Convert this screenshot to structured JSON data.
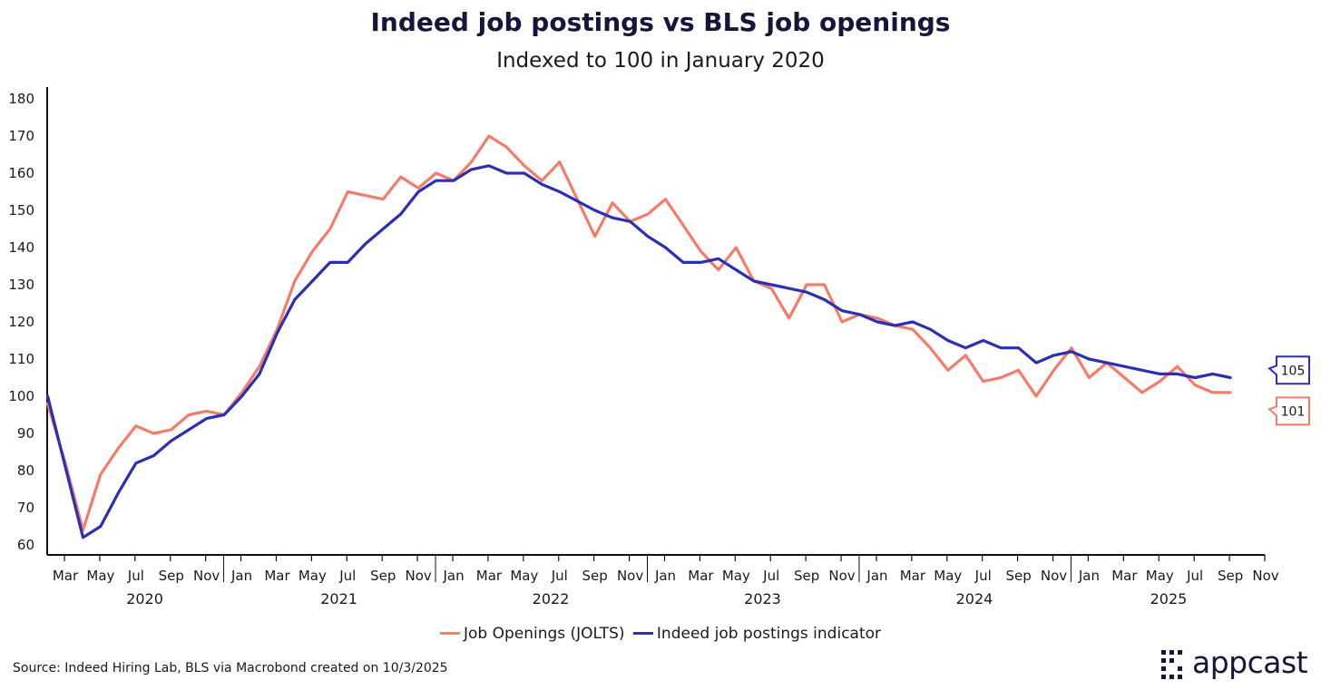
{
  "chart_data": {
    "type": "line",
    "title": "Indeed job postings vs BLS job openings",
    "subtitle": "Indexed to 100 in January 2020",
    "xlabel": "",
    "ylabel": "",
    "ylim": [
      60,
      180
    ],
    "yticks": [
      60,
      70,
      80,
      90,
      100,
      110,
      120,
      130,
      140,
      150,
      160,
      170,
      180
    ],
    "x_start": "2020-02",
    "x_end": "2025-11",
    "month_ticks": [
      "Mar",
      "May",
      "Jul",
      "Sep",
      "Nov",
      "Jan",
      "Mar",
      "May",
      "Jul",
      "Sep",
      "Nov",
      "Jan",
      "Mar",
      "May",
      "Jul",
      "Sep",
      "Nov",
      "Jan",
      "Mar",
      "May",
      "Jul",
      "Sep",
      "Nov",
      "Jan",
      "Mar",
      "May",
      "Jul",
      "Sep",
      "Nov",
      "Jan",
      "Mar",
      "May",
      "Jul",
      "Sep",
      "Nov"
    ],
    "year_labels": [
      "2020",
      "2021",
      "2022",
      "2023",
      "2024",
      "2025"
    ],
    "grid": false,
    "legend_position": "bottom-center",
    "x": [
      "2020-02",
      "2020-03",
      "2020-04",
      "2020-05",
      "2020-06",
      "2020-07",
      "2020-08",
      "2020-09",
      "2020-10",
      "2020-11",
      "2020-12",
      "2021-01",
      "2021-02",
      "2021-03",
      "2021-04",
      "2021-05",
      "2021-06",
      "2021-07",
      "2021-08",
      "2021-09",
      "2021-10",
      "2021-11",
      "2021-12",
      "2022-01",
      "2022-02",
      "2022-03",
      "2022-04",
      "2022-05",
      "2022-06",
      "2022-07",
      "2022-08",
      "2022-09",
      "2022-10",
      "2022-11",
      "2022-12",
      "2023-01",
      "2023-02",
      "2023-03",
      "2023-04",
      "2023-05",
      "2023-06",
      "2023-07",
      "2023-08",
      "2023-09",
      "2023-10",
      "2023-11",
      "2023-12",
      "2024-01",
      "2024-02",
      "2024-03",
      "2024-04",
      "2024-05",
      "2024-06",
      "2024-07",
      "2024-08",
      "2024-09",
      "2024-10",
      "2024-11",
      "2024-12",
      "2025-01",
      "2025-02",
      "2025-03",
      "2025-04",
      "2025-05",
      "2025-06",
      "2025-07",
      "2025-08",
      "2025-09"
    ],
    "series": [
      {
        "name": "Job Openings (JOLTS)",
        "color": "#f47c6b",
        "values": [
          98,
          82,
          64,
          79,
          86,
          92,
          90,
          91,
          95,
          96,
          95,
          101,
          108,
          118,
          131,
          139,
          145,
          155,
          154,
          153,
          159,
          156,
          160,
          158,
          163,
          170,
          167,
          162,
          158,
          163,
          null,
          143,
          152,
          147,
          149,
          153,
          146,
          139,
          134,
          140,
          131,
          129,
          121,
          130,
          130,
          120,
          122,
          121,
          119,
          118,
          113,
          107,
          111,
          104,
          105,
          107,
          100,
          107,
          113,
          105,
          109,
          105,
          101,
          104,
          108,
          103,
          101,
          101
        ],
        "end_label": "101"
      },
      {
        "name": "Indeed job postings indicator",
        "color": "#2a2fb3",
        "values": [
          100,
          81,
          62,
          65,
          74,
          82,
          84,
          88,
          91,
          94,
          95,
          100,
          106,
          117,
          126,
          131,
          136,
          136,
          141,
          145,
          149,
          155,
          158,
          158,
          161,
          162,
          160,
          160,
          157,
          155,
          null,
          150,
          148,
          147,
          143,
          140,
          136,
          136,
          137,
          134,
          131,
          130,
          129,
          128,
          126,
          123,
          122,
          120,
          119,
          120,
          118,
          115,
          113,
          115,
          113,
          113,
          109,
          111,
          112,
          110,
          109,
          108,
          107,
          106,
          106,
          105,
          106,
          105
        ],
        "end_label": "105"
      }
    ]
  },
  "legend": {
    "item1": "Job Openings (JOLTS)",
    "item2": "Indeed job postings indicator"
  },
  "source": "Source: Indeed Hiring Lab, BLS via Macrobond created on 10/3/2025",
  "logo": {
    "text": "appcast",
    "color": "#14163a"
  },
  "colors": {
    "jolts": "#f47c6b",
    "indeed": "#2a2fb3",
    "axis": "#111111"
  }
}
